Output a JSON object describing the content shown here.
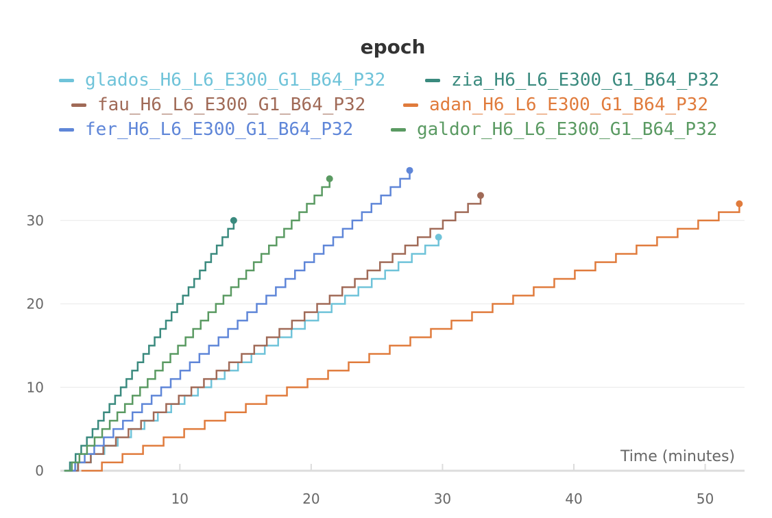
{
  "chart_data": {
    "type": "line",
    "title": "epoch",
    "xlabel": "Time (minutes)",
    "ylabel": "",
    "xlim": [
      0.9,
      53
    ],
    "ylim": [
      0,
      40
    ],
    "x_ticks": [
      10,
      20,
      30,
      40,
      50
    ],
    "y_ticks": [
      0,
      10,
      20,
      30
    ],
    "grid": true,
    "legend_position": "top",
    "step": true,
    "series": [
      {
        "name": "glados_H6_L6_E300_G1_B64_P32",
        "color": "#6fc3d9",
        "x_start": 1.2,
        "x_end": 29.7,
        "y_end": 28
      },
      {
        "name": "zia_H6_L6_E300_G1_B64_P32",
        "color": "#3a8a7e",
        "x_start": 1.2,
        "x_end": 14.1,
        "y_end": 30
      },
      {
        "name": "fau_H6_L6_E300_G1_B64_P32",
        "color": "#a06a57",
        "x_start": 1.3,
        "x_end": 32.9,
        "y_end": 33
      },
      {
        "name": "adan_H6_L6_E300_G1_B64_P32",
        "color": "#e07b3c",
        "x_start": 2.5,
        "x_end": 52.6,
        "y_end": 32
      },
      {
        "name": "fer_H6_L6_E300_G1_B64_P32",
        "color": "#5f86d8",
        "x_start": 1.3,
        "x_end": 27.5,
        "y_end": 36
      },
      {
        "name": "galdor_H6_L6_E300_G1_B64_P32",
        "color": "#5a9a62",
        "x_start": 1.2,
        "x_end": 21.4,
        "y_end": 35
      }
    ]
  }
}
